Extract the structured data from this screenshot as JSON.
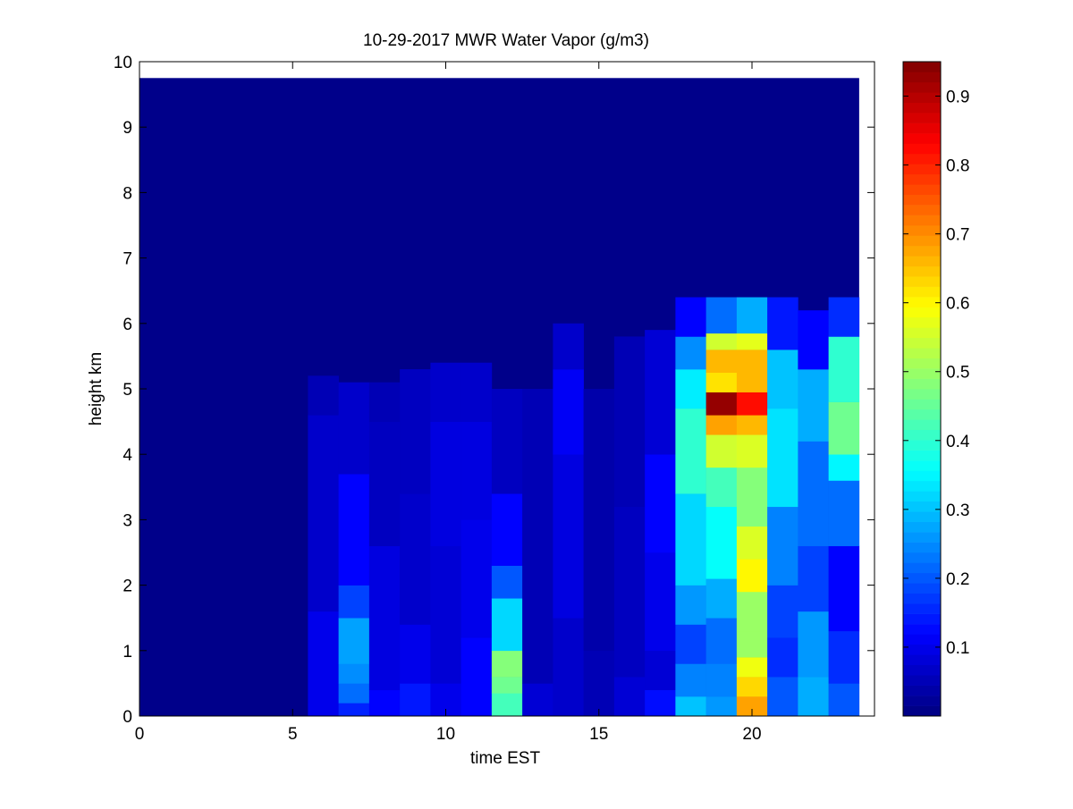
{
  "chart_data": {
    "type": "heatmap",
    "title": "10-29-2017 MWR Water Vapor (g/m3)",
    "xlabel": "time EST",
    "ylabel": "height km",
    "xlim": [
      0,
      24
    ],
    "ylim": [
      0,
      10
    ],
    "xticks": [
      0,
      5,
      10,
      15,
      20
    ],
    "yticks": [
      0,
      1,
      2,
      3,
      4,
      5,
      6,
      7,
      8,
      9,
      10
    ],
    "colormap": "jet",
    "clim": [
      0,
      0.95
    ],
    "colorbar_ticks": [
      0.1,
      0.2,
      0.3,
      0.4,
      0.5,
      0.6,
      0.7,
      0.8,
      0.9
    ],
    "fill_top_km": 9.75,
    "fill_max_hour": 23.5,
    "background_value": 0.01,
    "time_bins": [
      {
        "t0": 5.5,
        "t1": 6.5,
        "top": 5.2,
        "rows": [
          [
            0,
            1.6,
            0.1
          ],
          [
            1.6,
            4.6,
            0.07
          ],
          [
            4.6,
            5.2,
            0.05
          ]
        ]
      },
      {
        "t0": 6.5,
        "t1": 7.5,
        "top": 5.1,
        "rows": [
          [
            0,
            0.2,
            0.15
          ],
          [
            0.2,
            0.5,
            0.22
          ],
          [
            0.5,
            0.8,
            0.25
          ],
          [
            0.8,
            1.5,
            0.27
          ],
          [
            1.5,
            2.0,
            0.18
          ],
          [
            2.0,
            3.7,
            0.12
          ],
          [
            3.7,
            5.1,
            0.07
          ]
        ]
      },
      {
        "t0": 7.5,
        "t1": 8.5,
        "top": 5.1,
        "rows": [
          [
            0,
            0.4,
            0.12
          ],
          [
            0.4,
            2.6,
            0.09
          ],
          [
            2.6,
            4.5,
            0.06
          ],
          [
            4.5,
            5.1,
            0.05
          ]
        ]
      },
      {
        "t0": 8.5,
        "t1": 9.5,
        "top": 5.3,
        "rows": [
          [
            0,
            0.5,
            0.14
          ],
          [
            0.5,
            1.4,
            0.1
          ],
          [
            1.4,
            3.4,
            0.07
          ],
          [
            3.4,
            5.3,
            0.06
          ]
        ]
      },
      {
        "t0": 9.5,
        "t1": 10.5,
        "top": 5.4,
        "rows": [
          [
            0,
            0.5,
            0.1
          ],
          [
            0.5,
            2.6,
            0.08
          ],
          [
            2.6,
            4.5,
            0.09
          ],
          [
            4.5,
            5.4,
            0.07
          ]
        ]
      },
      {
        "t0": 10.5,
        "t1": 11.5,
        "top": 5.4,
        "rows": [
          [
            0,
            1.2,
            0.12
          ],
          [
            1.2,
            3.0,
            0.1
          ],
          [
            3.0,
            4.5,
            0.09
          ],
          [
            4.5,
            5.4,
            0.07
          ]
        ]
      },
      {
        "t0": 11.5,
        "t1": 12.5,
        "top": 5.0,
        "rows": [
          [
            0,
            0.35,
            0.42
          ],
          [
            0.35,
            0.6,
            0.46
          ],
          [
            0.6,
            1.0,
            0.48
          ],
          [
            1.0,
            1.8,
            0.32
          ],
          [
            1.8,
            2.3,
            0.2
          ],
          [
            2.3,
            3.4,
            0.12
          ],
          [
            3.4,
            5.0,
            0.06
          ]
        ]
      },
      {
        "t0": 12.5,
        "t1": 13.5,
        "top": 5.0,
        "rows": [
          [
            0,
            0.5,
            0.08
          ],
          [
            0.5,
            5.0,
            0.05
          ]
        ]
      },
      {
        "t0": 13.5,
        "t1": 14.5,
        "top": 6.0,
        "rows": [
          [
            0,
            1.5,
            0.07
          ],
          [
            1.5,
            4.0,
            0.09
          ],
          [
            4.0,
            5.3,
            0.11
          ],
          [
            5.3,
            6.0,
            0.07
          ]
        ]
      },
      {
        "t0": 14.5,
        "t1": 15.5,
        "top": 5.0,
        "rows": [
          [
            0,
            1.0,
            0.05
          ],
          [
            1.0,
            5.0,
            0.04
          ]
        ]
      },
      {
        "t0": 15.5,
        "t1": 16.5,
        "top": 5.8,
        "rows": [
          [
            0,
            0.6,
            0.08
          ],
          [
            0.6,
            3.2,
            0.06
          ],
          [
            3.2,
            5.8,
            0.05
          ]
        ]
      },
      {
        "t0": 16.5,
        "t1": 17.5,
        "top": 5.9,
        "rows": [
          [
            0,
            0.4,
            0.13
          ],
          [
            0.4,
            1.0,
            0.08
          ],
          [
            1.0,
            2.5,
            0.1
          ],
          [
            2.5,
            4.0,
            0.12
          ],
          [
            4.0,
            5.9,
            0.08
          ]
        ]
      },
      {
        "t0": 17.5,
        "t1": 18.5,
        "top": 6.4,
        "rows": [
          [
            0,
            0.3,
            0.3
          ],
          [
            0.3,
            0.8,
            0.24
          ],
          [
            0.8,
            1.4,
            0.18
          ],
          [
            1.4,
            2.0,
            0.26
          ],
          [
            2.0,
            3.4,
            0.32
          ],
          [
            3.4,
            4.7,
            0.4
          ],
          [
            4.7,
            5.3,
            0.34
          ],
          [
            5.3,
            5.8,
            0.25
          ],
          [
            5.8,
            6.4,
            0.12
          ]
        ]
      },
      {
        "t0": 18.5,
        "t1": 19.5,
        "top": 6.4,
        "rows": [
          [
            0,
            0.3,
            0.26
          ],
          [
            0.3,
            0.8,
            0.24
          ],
          [
            0.8,
            1.5,
            0.22
          ],
          [
            1.5,
            2.1,
            0.28
          ],
          [
            2.1,
            3.2,
            0.36
          ],
          [
            3.2,
            3.8,
            0.42
          ],
          [
            3.8,
            4.3,
            0.55
          ],
          [
            4.3,
            4.6,
            0.68
          ],
          [
            4.6,
            4.95,
            0.93
          ],
          [
            4.95,
            5.25,
            0.62
          ],
          [
            5.25,
            5.6,
            0.66
          ],
          [
            5.6,
            5.85,
            0.55
          ],
          [
            5.85,
            6.4,
            0.22
          ]
        ]
      },
      {
        "t0": 19.5,
        "t1": 20.5,
        "top": 6.4,
        "rows": [
          [
            0,
            0.3,
            0.68
          ],
          [
            0.3,
            0.6,
            0.63
          ],
          [
            0.6,
            0.9,
            0.58
          ],
          [
            0.9,
            1.3,
            0.5
          ],
          [
            1.3,
            1.9,
            0.5
          ],
          [
            1.9,
            2.4,
            0.6
          ],
          [
            2.4,
            2.9,
            0.56
          ],
          [
            2.9,
            3.8,
            0.48
          ],
          [
            3.8,
            4.3,
            0.56
          ],
          [
            4.3,
            4.6,
            0.66
          ],
          [
            4.6,
            4.95,
            0.82
          ],
          [
            4.95,
            5.6,
            0.66
          ],
          [
            5.6,
            5.85,
            0.57
          ],
          [
            5.85,
            6.4,
            0.28
          ]
        ]
      },
      {
        "t0": 20.5,
        "t1": 21.5,
        "top": 6.4,
        "rows": [
          [
            0,
            0.6,
            0.2
          ],
          [
            0.6,
            1.2,
            0.16
          ],
          [
            1.2,
            2.0,
            0.18
          ],
          [
            2.0,
            3.2,
            0.24
          ],
          [
            3.2,
            4.7,
            0.33
          ],
          [
            4.7,
            5.6,
            0.3
          ],
          [
            5.6,
            6.4,
            0.14
          ]
        ]
      },
      {
        "t0": 21.5,
        "t1": 22.5,
        "top": 6.2,
        "rows": [
          [
            0,
            0.6,
            0.28
          ],
          [
            0.6,
            1.6,
            0.26
          ],
          [
            1.6,
            2.6,
            0.18
          ],
          [
            2.6,
            4.2,
            0.22
          ],
          [
            4.2,
            5.3,
            0.28
          ],
          [
            5.3,
            6.2,
            0.12
          ]
        ]
      },
      {
        "t0": 22.5,
        "t1": 23.5,
        "top": 6.4,
        "rows": [
          [
            0,
            0.5,
            0.2
          ],
          [
            0.5,
            1.3,
            0.16
          ],
          [
            1.3,
            2.6,
            0.12
          ],
          [
            2.6,
            3.6,
            0.22
          ],
          [
            3.6,
            4.0,
            0.35
          ],
          [
            4.0,
            4.8,
            0.46
          ],
          [
            4.8,
            5.8,
            0.4
          ],
          [
            5.8,
            6.4,
            0.16
          ]
        ]
      }
    ]
  }
}
